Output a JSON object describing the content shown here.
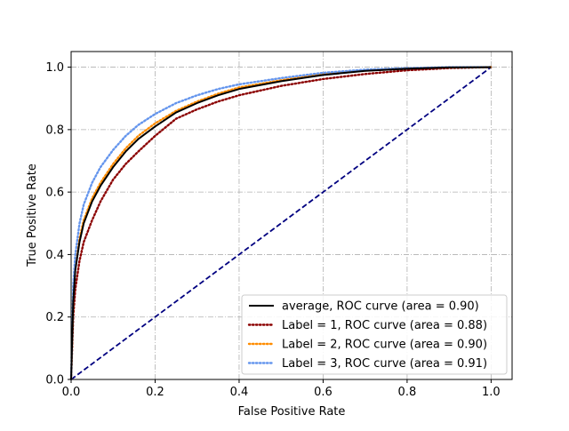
{
  "chart_data": {
    "type": "line",
    "title": "",
    "xlabel": "False Positive Rate",
    "ylabel": "True Positive Rate",
    "xlim": [
      0.0,
      1.05
    ],
    "ylim": [
      0.0,
      1.05
    ],
    "xticks": [
      "0.0",
      "0.2",
      "0.4",
      "0.6",
      "0.8",
      "1.0"
    ],
    "yticks": [
      "0.0",
      "0.2",
      "0.4",
      "0.6",
      "0.8",
      "1.0"
    ],
    "grid": true,
    "legend_position": "lower-right",
    "diagonal": {
      "x": [
        0,
        1
      ],
      "y": [
        0,
        1
      ],
      "color": "#000080",
      "style": "dashed"
    },
    "series": [
      {
        "name": "average, ROC curve (area = 0.90)",
        "color": "#000000",
        "style": "solid",
        "x": [
          0,
          0.005,
          0.01,
          0.02,
          0.03,
          0.05,
          0.07,
          0.1,
          0.13,
          0.16,
          0.2,
          0.25,
          0.3,
          0.35,
          0.4,
          0.5,
          0.6,
          0.7,
          0.8,
          0.9,
          1.0
        ],
        "y": [
          0,
          0.25,
          0.35,
          0.44,
          0.5,
          0.57,
          0.62,
          0.68,
          0.73,
          0.77,
          0.81,
          0.855,
          0.885,
          0.91,
          0.93,
          0.955,
          0.975,
          0.988,
          0.995,
          0.999,
          1.0
        ]
      },
      {
        "name": "Label = 1, ROC curve (area = 0.88)",
        "color": "#8b0000",
        "style": "dotted",
        "x": [
          0,
          0.005,
          0.01,
          0.02,
          0.03,
          0.05,
          0.07,
          0.1,
          0.13,
          0.16,
          0.2,
          0.25,
          0.3,
          0.35,
          0.4,
          0.5,
          0.6,
          0.7,
          0.8,
          0.9,
          1.0
        ],
        "y": [
          0,
          0.2,
          0.29,
          0.38,
          0.44,
          0.51,
          0.57,
          0.64,
          0.69,
          0.73,
          0.78,
          0.835,
          0.865,
          0.89,
          0.91,
          0.94,
          0.962,
          0.978,
          0.99,
          0.997,
          1.0
        ]
      },
      {
        "name": "Label = 2, ROC curve (area = 0.90)",
        "color": "#ff8c00",
        "style": "dotted",
        "x": [
          0,
          0.005,
          0.01,
          0.02,
          0.03,
          0.05,
          0.07,
          0.1,
          0.13,
          0.16,
          0.2,
          0.25,
          0.3,
          0.35,
          0.4,
          0.5,
          0.6,
          0.7,
          0.8,
          0.9,
          1.0
        ],
        "y": [
          0,
          0.26,
          0.36,
          0.45,
          0.51,
          0.58,
          0.63,
          0.69,
          0.74,
          0.78,
          0.82,
          0.86,
          0.89,
          0.915,
          0.935,
          0.958,
          0.977,
          0.989,
          0.996,
          0.999,
          1.0
        ]
      },
      {
        "name": "Label = 3, ROC curve (area = 0.91)",
        "color": "#6495ed",
        "style": "dotted",
        "x": [
          0,
          0.005,
          0.01,
          0.02,
          0.03,
          0.05,
          0.07,
          0.1,
          0.13,
          0.16,
          0.2,
          0.25,
          0.3,
          0.35,
          0.4,
          0.5,
          0.6,
          0.7,
          0.8,
          0.9,
          1.0
        ],
        "y": [
          0,
          0.3,
          0.4,
          0.5,
          0.56,
          0.63,
          0.68,
          0.735,
          0.78,
          0.815,
          0.85,
          0.885,
          0.91,
          0.93,
          0.945,
          0.965,
          0.982,
          0.992,
          0.997,
          1.0,
          1.0
        ]
      }
    ]
  }
}
